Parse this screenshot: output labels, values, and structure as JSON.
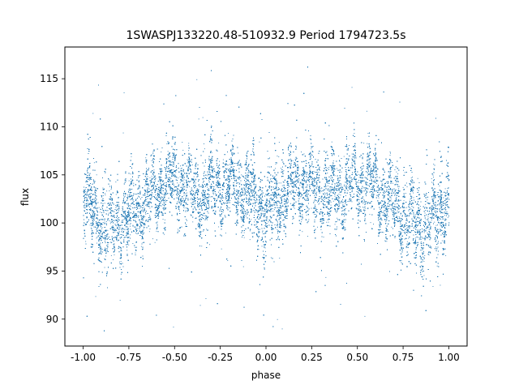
{
  "chart_data": {
    "type": "scatter",
    "title": "1SWASPJ133220.48-510932.9 Period 1794723.5s",
    "xlabel": "phase",
    "ylabel": "flux",
    "xlim": [
      -1.1,
      1.1
    ],
    "ylim": [
      87.2,
      118.3
    ],
    "x_ticks": [
      "-1.00",
      "-0.75",
      "-0.50",
      "-0.25",
      "0.00",
      "0.25",
      "0.50",
      "0.75",
      "1.00"
    ],
    "x_tick_values": [
      -1.0,
      -0.75,
      -0.5,
      -0.25,
      0.0,
      0.25,
      0.5,
      0.75,
      1.0
    ],
    "y_ticks": [
      "90",
      "95",
      "100",
      "105",
      "110",
      "115"
    ],
    "y_tick_values": [
      90,
      95,
      100,
      105,
      110,
      115
    ],
    "grid": false,
    "marker_color": "#1f77b4",
    "series": [
      {
        "phase_range": [
          -1.0,
          1.0
        ],
        "point_count": 30000,
        "envelope": {
          "phase": [
            0.0,
            0.05,
            0.1,
            0.15,
            0.2,
            0.25,
            0.3,
            0.35,
            0.4,
            0.45,
            0.5,
            0.55,
            0.6,
            0.65,
            0.7,
            0.75,
            0.8,
            0.85,
            0.9,
            0.95,
            1.0
          ],
          "center_flux": [
            100.5,
            102.0,
            103.0,
            103.8,
            104.0,
            103.8,
            103.5,
            103.0,
            103.2,
            103.8,
            104.2,
            104.0,
            103.5,
            102.5,
            101.5,
            101.0,
            100.0,
            99.5,
            100.2,
            101.5,
            102.5
          ],
          "spread": [
            2.8,
            2.5,
            2.3,
            2.1,
            2.0,
            2.1,
            2.3,
            2.2,
            2.3,
            2.4,
            2.2,
            2.1,
            2.0,
            2.1,
            2.2,
            2.3,
            2.4,
            2.5,
            2.4,
            2.6,
            2.8
          ],
          "min_flux": 88.7,
          "max_flux": 116.7
        }
      }
    ]
  }
}
